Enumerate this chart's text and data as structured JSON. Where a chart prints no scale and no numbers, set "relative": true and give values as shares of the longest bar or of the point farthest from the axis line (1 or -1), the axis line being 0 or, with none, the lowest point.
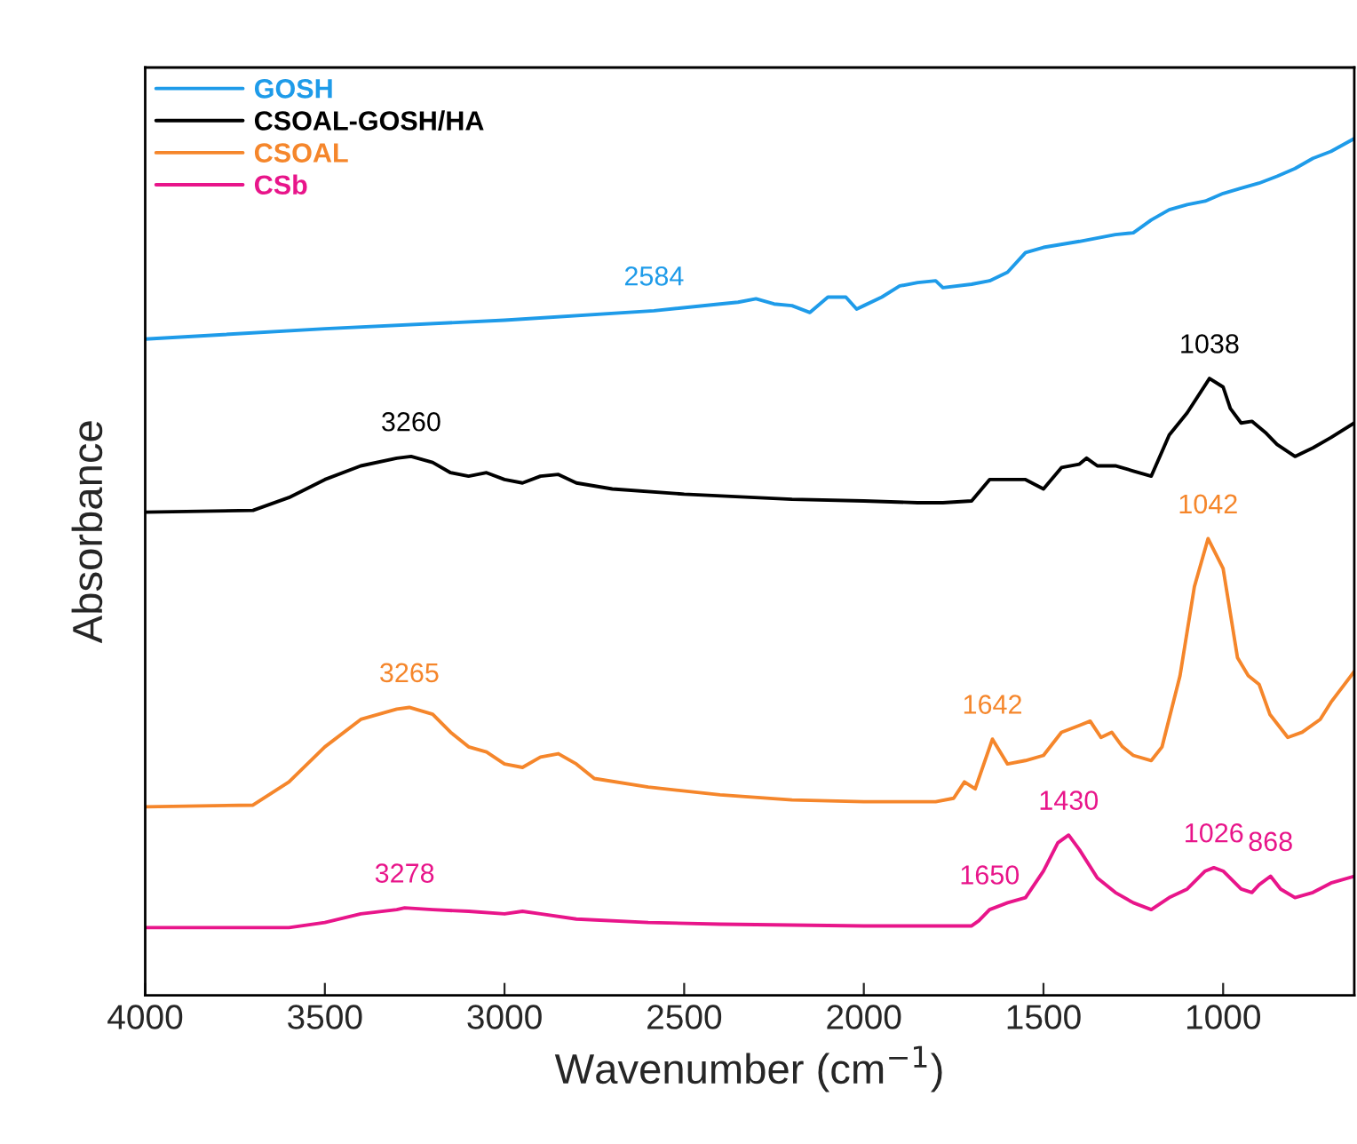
{
  "chart_data": {
    "type": "line",
    "relative": true,
    "xlabel": "Wavenumber (cm$^{−1}$)",
    "ylabel": "Absorbance",
    "xlim": [
      4000,
      635
    ],
    "xticks": [
      4000,
      3500,
      3000,
      2500,
      2000,
      1500,
      1000
    ],
    "grid": false,
    "legend": "top left",
    "tick_labels": "x",
    "series": [
      {
        "name": "GOSH",
        "color": "#1e9be9",
        "x": [
          4000,
          3500,
          3000,
          2584,
          2400,
          2350,
          2300,
          2250,
          2200,
          2150,
          2100,
          2050,
          2020,
          2000,
          1950,
          1900,
          1850,
          1800,
          1780,
          1700,
          1650,
          1600,
          1550,
          1500,
          1400,
          1300,
          1250,
          1200,
          1150,
          1100,
          1050,
          1000,
          950,
          900,
          850,
          800,
          750,
          700,
          635
        ],
        "values": [
          0.766,
          0.778,
          0.788,
          0.799,
          0.807,
          0.809,
          0.813,
          0.807,
          0.805,
          0.797,
          0.815,
          0.815,
          0.801,
          0.805,
          0.815,
          0.828,
          0.832,
          0.834,
          0.826,
          0.83,
          0.834,
          0.844,
          0.867,
          0.873,
          0.88,
          0.888,
          0.89,
          0.905,
          0.917,
          0.923,
          0.927,
          0.936,
          0.942,
          0.948,
          0.956,
          0.965,
          0.977,
          0.985,
          1.0
        ]
      },
      {
        "name": "CSOAL-GOSH/HA",
        "color": "#000000",
        "x": [
          4000,
          3700,
          3600,
          3500,
          3400,
          3300,
          3260,
          3200,
          3150,
          3100,
          3050,
          3000,
          2950,
          2900,
          2850,
          2800,
          2700,
          2500,
          2200,
          2000,
          1850,
          1780,
          1700,
          1650,
          1600,
          1550,
          1500,
          1450,
          1400,
          1380,
          1350,
          1300,
          1250,
          1200,
          1150,
          1100,
          1038,
          1000,
          980,
          950,
          920,
          880,
          850,
          800,
          750,
          700,
          635
        ],
        "values": [
          0.564,
          0.566,
          0.581,
          0.602,
          0.618,
          0.627,
          0.629,
          0.622,
          0.61,
          0.606,
          0.61,
          0.602,
          0.598,
          0.606,
          0.608,
          0.598,
          0.591,
          0.585,
          0.579,
          0.577,
          0.575,
          0.575,
          0.577,
          0.602,
          0.602,
          0.602,
          0.591,
          0.616,
          0.62,
          0.627,
          0.618,
          0.618,
          0.612,
          0.606,
          0.654,
          0.68,
          0.72,
          0.71,
          0.685,
          0.668,
          0.67,
          0.656,
          0.643,
          0.629,
          0.639,
          0.651,
          0.668
        ]
      },
      {
        "name": "CSOAL",
        "color": "#f5862b",
        "x": [
          4000,
          3700,
          3600,
          3500,
          3400,
          3300,
          3265,
          3200,
          3150,
          3100,
          3050,
          3000,
          2950,
          2900,
          2850,
          2800,
          2750,
          2600,
          2400,
          2200,
          2000,
          1800,
          1750,
          1720,
          1690,
          1642,
          1600,
          1550,
          1500,
          1450,
          1400,
          1370,
          1340,
          1310,
          1280,
          1250,
          1200,
          1170,
          1120,
          1080,
          1042,
          1000,
          960,
          930,
          900,
          870,
          820,
          780,
          730,
          700,
          635
        ],
        "values": [
          0.22,
          0.222,
          0.249,
          0.29,
          0.322,
          0.334,
          0.336,
          0.328,
          0.307,
          0.29,
          0.284,
          0.27,
          0.266,
          0.278,
          0.282,
          0.27,
          0.253,
          0.243,
          0.234,
          0.228,
          0.226,
          0.226,
          0.23,
          0.249,
          0.241,
          0.299,
          0.27,
          0.274,
          0.28,
          0.307,
          0.315,
          0.32,
          0.301,
          0.307,
          0.29,
          0.28,
          0.274,
          0.29,
          0.373,
          0.477,
          0.533,
          0.498,
          0.394,
          0.373,
          0.363,
          0.328,
          0.301,
          0.307,
          0.322,
          0.342,
          0.378
        ]
      },
      {
        "name": "CSb",
        "color": "#e8158a",
        "x": [
          4000,
          3600,
          3500,
          3400,
          3300,
          3278,
          3200,
          3100,
          3000,
          2950,
          2900,
          2800,
          2600,
          2400,
          2000,
          1700,
          1680,
          1650,
          1600,
          1550,
          1500,
          1460,
          1430,
          1400,
          1350,
          1300,
          1250,
          1200,
          1150,
          1100,
          1050,
          1026,
          1000,
          950,
          920,
          900,
          868,
          840,
          800,
          750,
          700,
          635
        ],
        "values": [
          0.079,
          0.079,
          0.085,
          0.095,
          0.1,
          0.102,
          0.1,
          0.098,
          0.095,
          0.098,
          0.095,
          0.089,
          0.085,
          0.083,
          0.081,
          0.081,
          0.087,
          0.1,
          0.108,
          0.114,
          0.145,
          0.178,
          0.187,
          0.17,
          0.137,
          0.12,
          0.108,
          0.1,
          0.114,
          0.124,
          0.145,
          0.149,
          0.145,
          0.124,
          0.12,
          0.129,
          0.139,
          0.124,
          0.114,
          0.12,
          0.131,
          0.139
        ]
      }
    ],
    "annotations": [
      {
        "text": "2584",
        "x": 2584,
        "y": 0.799
      },
      {
        "text": "3260",
        "x": 3260,
        "y": 0.629
      },
      {
        "text": "1038",
        "x": 1038,
        "y": 0.72
      },
      {
        "text": "3265",
        "x": 3265,
        "y": 0.336
      },
      {
        "text": "1642",
        "x": 1642,
        "y": 0.299
      },
      {
        "text": "1042",
        "x": 1042,
        "y": 0.533
      },
      {
        "text": "3278",
        "x": 3278,
        "y": 0.102
      },
      {
        "text": "1650",
        "x": 1650,
        "y": 0.1
      },
      {
        "text": "1430",
        "x": 1430,
        "y": 0.187
      },
      {
        "text": "1026",
        "x": 1026,
        "y": 0.149
      },
      {
        "text": "868",
        "x": 868,
        "y": 0.139
      }
    ]
  }
}
